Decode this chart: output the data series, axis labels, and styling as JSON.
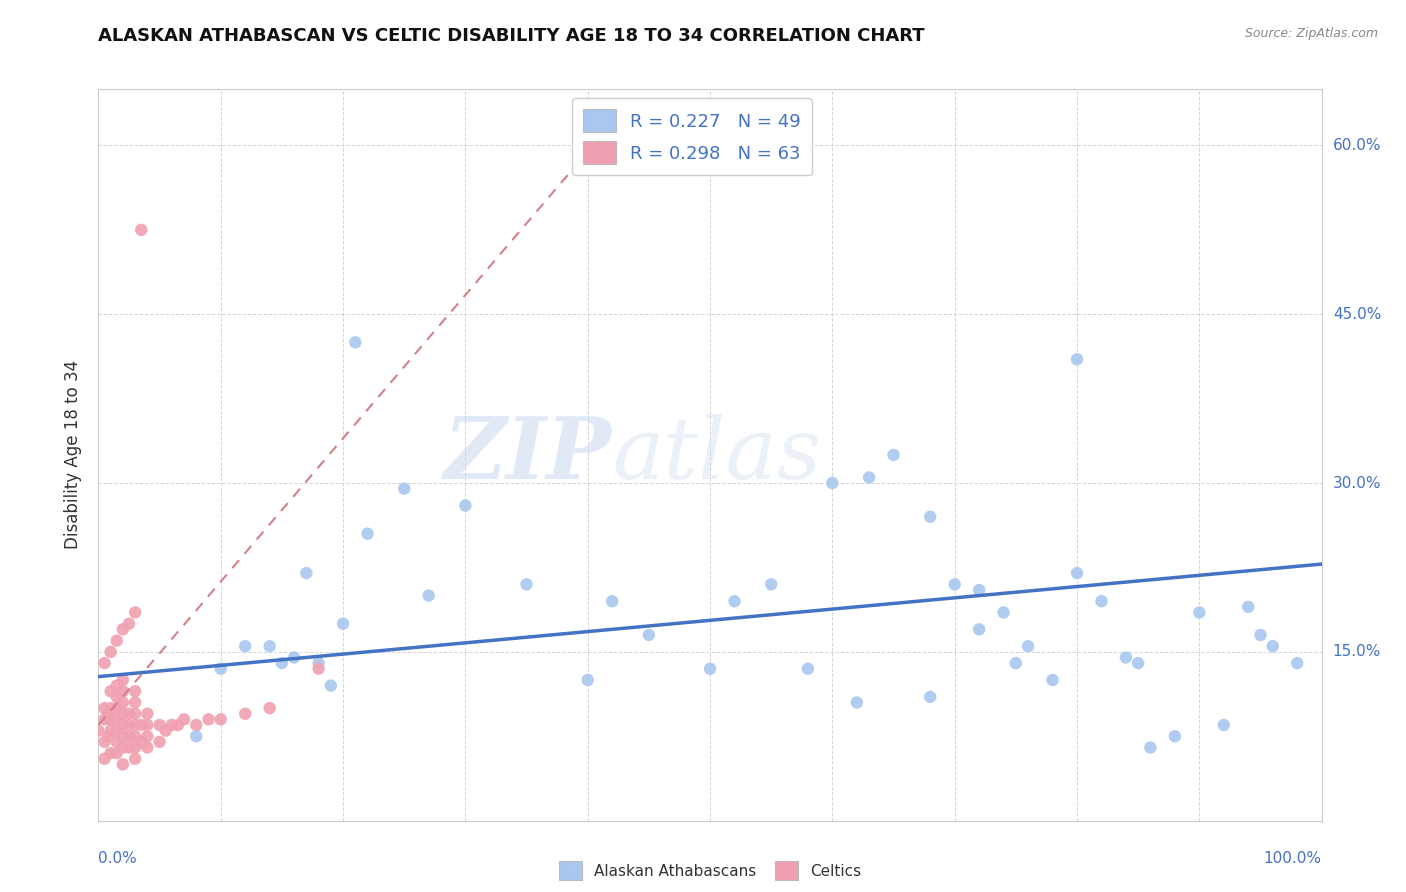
{
  "title": "ALASKAN ATHABASCAN VS CELTIC DISABILITY AGE 18 TO 34 CORRELATION CHART",
  "source": "Source: ZipAtlas.com",
  "ylabel": "Disability Age 18 to 34",
  "legend_label1": "Alaskan Athabascans",
  "legend_label2": "Celtics",
  "watermark_zip": "ZIP",
  "watermark_atlas": "atlas",
  "r1": 0.227,
  "n1": 49,
  "r2": 0.298,
  "n2": 63,
  "xlim": [
    0.0,
    1.0
  ],
  "ylim": [
    0.0,
    0.65
  ],
  "yticks": [
    0.0,
    0.15,
    0.3,
    0.45,
    0.6
  ],
  "color_blue": "#a8c8f0",
  "color_pink": "#f0a0b0",
  "line_blue": "#4472c4",
  "line_pink": "#d4808a",
  "blue_line_x0": 0.0,
  "blue_line_y0": 0.128,
  "blue_line_x1": 1.0,
  "blue_line_y1": 0.228,
  "pink_line_x0": 0.0,
  "pink_line_y0": 0.085,
  "pink_line_x1": 0.42,
  "pink_line_y1": 0.62,
  "athabascan_x": [
    0.21,
    0.25,
    0.14,
    0.16,
    0.17,
    0.18,
    0.19,
    0.22,
    0.3,
    0.35,
    0.42,
    0.5,
    0.55,
    0.6,
    0.63,
    0.68,
    0.7,
    0.72,
    0.75,
    0.8,
    0.82,
    0.85,
    0.88,
    0.9,
    0.92,
    0.95,
    0.1,
    0.12,
    0.08,
    0.15,
    0.2,
    0.27,
    0.4,
    0.45,
    0.98,
    0.65,
    0.72,
    0.78,
    0.8,
    0.52,
    0.58,
    0.62,
    0.68,
    0.74,
    0.76,
    0.84,
    0.86,
    0.94,
    0.96
  ],
  "athabascan_y": [
    0.425,
    0.295,
    0.155,
    0.145,
    0.22,
    0.14,
    0.12,
    0.255,
    0.28,
    0.21,
    0.195,
    0.135,
    0.21,
    0.3,
    0.305,
    0.27,
    0.21,
    0.17,
    0.14,
    0.22,
    0.195,
    0.14,
    0.075,
    0.185,
    0.085,
    0.165,
    0.135,
    0.155,
    0.075,
    0.14,
    0.175,
    0.2,
    0.125,
    0.165,
    0.14,
    0.325,
    0.205,
    0.125,
    0.41,
    0.195,
    0.135,
    0.105,
    0.11,
    0.185,
    0.155,
    0.145,
    0.065,
    0.19,
    0.155
  ],
  "celtic_x": [
    0.0,
    0.005,
    0.005,
    0.005,
    0.005,
    0.008,
    0.008,
    0.01,
    0.01,
    0.01,
    0.01,
    0.01,
    0.015,
    0.015,
    0.015,
    0.015,
    0.015,
    0.015,
    0.015,
    0.02,
    0.02,
    0.02,
    0.02,
    0.02,
    0.02,
    0.02,
    0.02,
    0.025,
    0.025,
    0.025,
    0.025,
    0.03,
    0.03,
    0.03,
    0.03,
    0.03,
    0.03,
    0.03,
    0.035,
    0.035,
    0.04,
    0.04,
    0.04,
    0.04,
    0.05,
    0.05,
    0.055,
    0.06,
    0.065,
    0.07,
    0.08,
    0.09,
    0.1,
    0.12,
    0.14,
    0.18,
    0.005,
    0.01,
    0.015,
    0.02,
    0.025,
    0.03,
    0.035
  ],
  "celtic_y": [
    0.08,
    0.07,
    0.09,
    0.1,
    0.055,
    0.075,
    0.095,
    0.06,
    0.08,
    0.09,
    0.1,
    0.115,
    0.06,
    0.07,
    0.08,
    0.09,
    0.1,
    0.11,
    0.12,
    0.05,
    0.065,
    0.075,
    0.085,
    0.095,
    0.105,
    0.115,
    0.125,
    0.065,
    0.075,
    0.085,
    0.095,
    0.055,
    0.065,
    0.075,
    0.085,
    0.095,
    0.105,
    0.115,
    0.07,
    0.085,
    0.065,
    0.075,
    0.085,
    0.095,
    0.07,
    0.085,
    0.08,
    0.085,
    0.085,
    0.09,
    0.085,
    0.09,
    0.09,
    0.095,
    0.1,
    0.135,
    0.14,
    0.15,
    0.16,
    0.17,
    0.175,
    0.185,
    0.525
  ]
}
